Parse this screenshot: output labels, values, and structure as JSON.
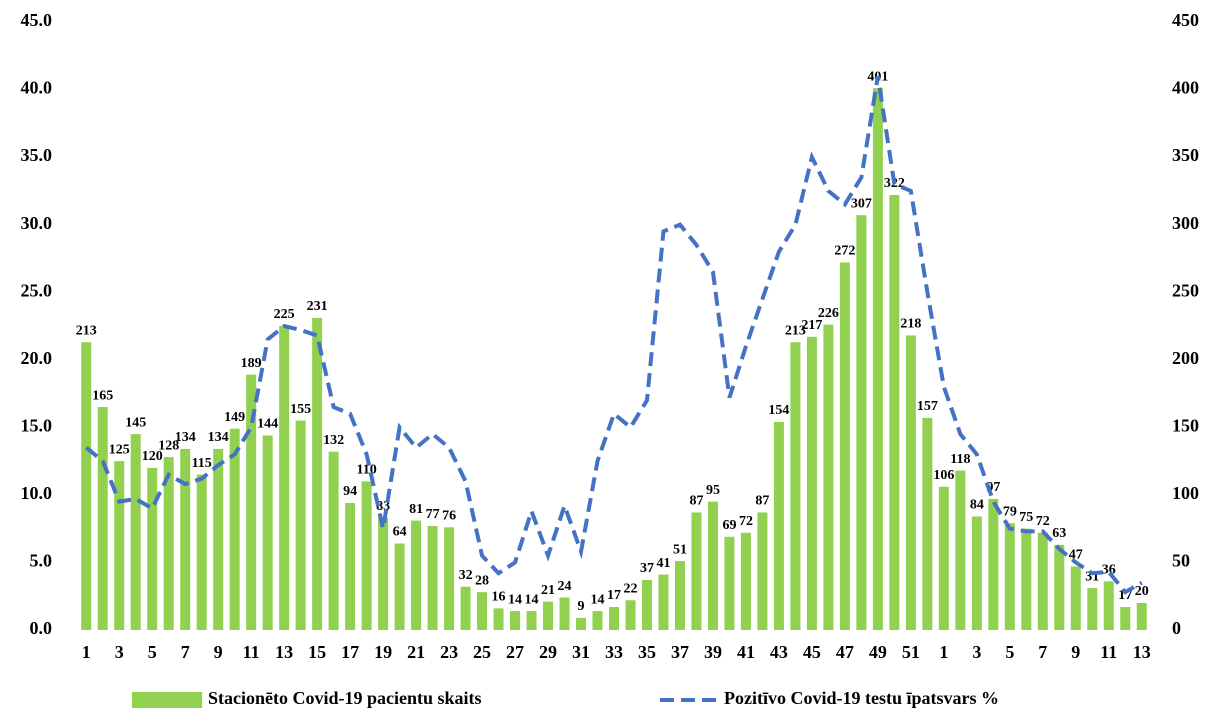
{
  "chart_data": {
    "type": "combo",
    "categories": [
      "1",
      null,
      "3",
      null,
      "5",
      null,
      "7",
      null,
      "9",
      null,
      "11",
      null,
      "13",
      null,
      "15",
      null,
      "17",
      null,
      "19",
      null,
      "21",
      null,
      "23",
      null,
      "25",
      null,
      "27",
      null,
      "29",
      null,
      "31",
      null,
      "33",
      null,
      "35",
      null,
      "37",
      null,
      "39",
      null,
      "41",
      null,
      "43",
      null,
      "45",
      null,
      "47",
      null,
      "49",
      null,
      "51",
      null,
      "1",
      null,
      "3",
      null,
      "5",
      null,
      "7",
      null,
      "9",
      null,
      "11",
      null,
      "13"
    ],
    "series": [
      {
        "name": "Stacionēto Covid-19 pacientu skaits",
        "type": "bar",
        "axis": "y2",
        "color": "#92d050",
        "values": [
          213,
          165,
          125,
          145,
          120,
          128,
          134,
          115,
          134,
          149,
          189,
          144,
          225,
          155,
          231,
          132,
          94,
          110,
          83,
          64,
          81,
          77,
          76,
          32,
          28,
          16,
          14,
          14,
          21,
          24,
          9,
          14,
          17,
          22,
          37,
          41,
          51,
          87,
          95,
          69,
          72,
          87,
          154,
          213,
          217,
          226,
          272,
          307,
          401,
          322,
          218,
          157,
          106,
          118,
          84,
          97,
          79,
          75,
          72,
          63,
          47,
          31,
          36,
          17,
          20
        ]
      },
      {
        "name": "Pozitīvo Covid-19 testu īpatsvars %",
        "type": "line",
        "axis": "y",
        "color": "#4472c4",
        "values": [
          13.5,
          12.5,
          9.5,
          9.7,
          9.0,
          11.5,
          10.8,
          11.2,
          12.2,
          13.0,
          15.0,
          21.5,
          22.5,
          22.2,
          21.8,
          16.5,
          16.0,
          13.0,
          7.5,
          15.0,
          13.5,
          14.5,
          13.5,
          11.0,
          5.5,
          4.2,
          5.0,
          8.8,
          5.5,
          9.2,
          5.8,
          12.5,
          16.0,
          15.0,
          17.0,
          29.5,
          30.0,
          28.5,
          26.5,
          17.2,
          21.0,
          24.5,
          28.0,
          30.0,
          35.0,
          32.5,
          31.5,
          33.5,
          41.0,
          33.0,
          32.5,
          25.0,
          18.0,
          14.5,
          13.0,
          9.5,
          7.5,
          7.3,
          7.3,
          6.0,
          5.0,
          4.2,
          4.3,
          2.8,
          3.5
        ]
      }
    ],
    "ylim": [
      0,
      45
    ],
    "yticks": [
      {
        "value": 0,
        "label": "0.0"
      },
      {
        "value": 5,
        "label": "5.0"
      },
      {
        "value": 10,
        "label": "10.0"
      },
      {
        "value": 15,
        "label": "15.0"
      },
      {
        "value": 20,
        "label": "20.0"
      },
      {
        "value": 25,
        "label": "25.0"
      },
      {
        "value": 30,
        "label": "30.0"
      },
      {
        "value": 35,
        "label": "35.0"
      },
      {
        "value": 40,
        "label": "40.0"
      },
      {
        "value": 45,
        "label": "45.0"
      }
    ],
    "y2lim": [
      0,
      450
    ],
    "y2ticks": [
      0,
      50,
      100,
      150,
      200,
      250,
      300,
      350,
      400,
      450
    ],
    "legend": "bottom"
  }
}
